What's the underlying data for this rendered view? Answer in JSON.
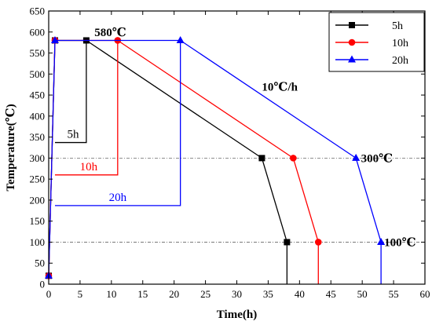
{
  "chart_data": {
    "type": "line",
    "xlabel": "Time(h)",
    "ylabel": "Temperature(℃)",
    "xlim": [
      0,
      60
    ],
    "ylim": [
      0,
      650
    ],
    "xticks": [
      0,
      5,
      10,
      15,
      20,
      25,
      30,
      35,
      40,
      45,
      50,
      55,
      60
    ],
    "yticks": [
      0,
      50,
      100,
      150,
      200,
      250,
      300,
      350,
      400,
      450,
      500,
      550,
      600,
      650
    ],
    "legend_position": "top-right",
    "series": [
      {
        "name": "5h",
        "color": "#000000",
        "marker": "square",
        "hold_label": "5h",
        "hold": [
          1,
          6
        ],
        "x": [
          0,
          1,
          6,
          34,
          38,
          38
        ],
        "y": [
          20,
          580,
          580,
          300,
          100,
          0
        ]
      },
      {
        "name": "10h",
        "color": "#ff0000",
        "marker": "circle",
        "hold_label": "10h",
        "hold": [
          1,
          11
        ],
        "x": [
          0,
          1,
          11,
          39,
          43,
          43
        ],
        "y": [
          20,
          580,
          580,
          300,
          100,
          0
        ]
      },
      {
        "name": "20h",
        "color": "#0000ff",
        "marker": "triangle",
        "hold_label": "20h",
        "hold": [
          1,
          21
        ],
        "x": [
          0,
          1,
          21,
          49,
          53,
          53
        ],
        "y": [
          20,
          580,
          580,
          300,
          100,
          0
        ]
      }
    ],
    "reference_lines": [
      300,
      100
    ],
    "annotations": [
      {
        "text": "580℃",
        "x": 7.3,
        "y": 600
      },
      {
        "text": "10℃/h",
        "x": 34,
        "y": 470
      },
      {
        "text": "300℃",
        "x": 49.8,
        "y": 300
      },
      {
        "text": "100℃",
        "x": 53.5,
        "y": 100
      }
    ]
  }
}
